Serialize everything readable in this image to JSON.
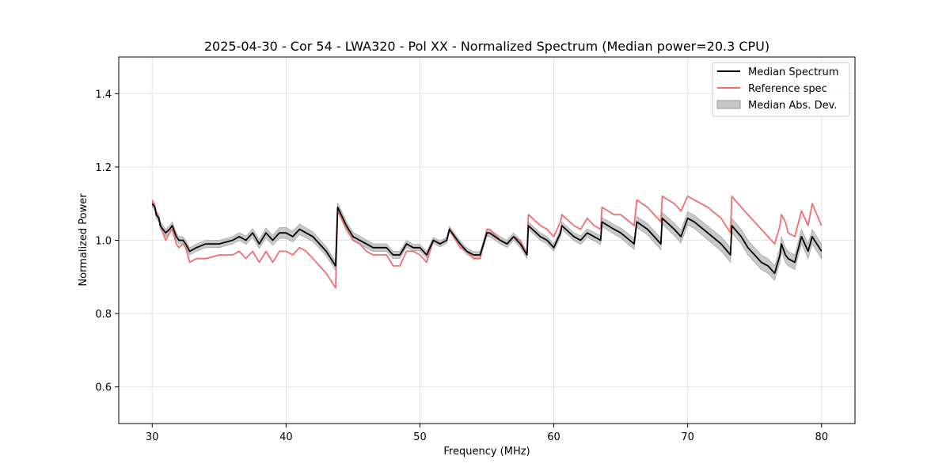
{
  "chart_data": {
    "type": "line",
    "title": "2025-04-30 - Cor 54 - LWA320 - Pol XX - Normalized Spectrum (Median power=20.3 CPU)",
    "xlabel": "Frequency (MHz)",
    "ylabel": "Normalized Power",
    "xlim": [
      27.5,
      82.5
    ],
    "ylim": [
      0.5,
      1.5
    ],
    "xticks": [
      30,
      40,
      50,
      60,
      70,
      80
    ],
    "yticks": [
      0.6,
      0.8,
      1.0,
      1.2,
      1.4
    ],
    "xtick_labels": [
      "30",
      "40",
      "50",
      "60",
      "70",
      "80"
    ],
    "ytick_labels": [
      "0.6",
      "0.8",
      "1.0",
      "1.2",
      "1.4"
    ],
    "grid": true,
    "legend": {
      "position": "top-right",
      "entries": [
        "Median Spectrum",
        "Reference spec",
        "Median Abs. Dev."
      ]
    },
    "colors": {
      "median": "#000000",
      "reference": "#f26d6d",
      "band": "#b0b0b0"
    },
    "series": [
      {
        "name": "Median Spectrum",
        "x": [
          30.0,
          30.2,
          30.3,
          30.5,
          30.6,
          30.8,
          31.0,
          31.3,
          31.5,
          31.8,
          32.0,
          32.3,
          32.5,
          32.8,
          33.3,
          34.0,
          35.0,
          36.0,
          36.5,
          37.0,
          37.5,
          38.0,
          38.5,
          39.0,
          39.5,
          40.0,
          40.5,
          41.0,
          41.5,
          42.0,
          42.5,
          43.0,
          43.7,
          43.85,
          44.5,
          45.0,
          45.5,
          46.0,
          46.5,
          47.0,
          47.5,
          48.0,
          48.5,
          49.0,
          49.5,
          50.0,
          50.5,
          51.0,
          51.5,
          52.0,
          52.2,
          53.0,
          53.5,
          54.0,
          54.5,
          55.0,
          55.2,
          56.0,
          56.5,
          57.0,
          57.5,
          58.0,
          58.1,
          59.0,
          59.5,
          60.0,
          60.5,
          60.6,
          61.5,
          62.0,
          62.5,
          63.0,
          63.5,
          63.6,
          64.5,
          65.0,
          66.0,
          66.2,
          67.0,
          67.5,
          68.0,
          68.1,
          69.0,
          69.5,
          70.0,
          70.5,
          71.5,
          72.5,
          73.2,
          73.3,
          74.0,
          74.5,
          75.0,
          75.5,
          76.0,
          76.5,
          76.9,
          77.0,
          77.3,
          77.5,
          78.0,
          78.5,
          79.0,
          79.3,
          80.0
        ],
        "values": [
          1.1,
          1.09,
          1.07,
          1.06,
          1.04,
          1.03,
          1.02,
          1.03,
          1.04,
          1.01,
          1.0,
          1.0,
          0.99,
          0.97,
          0.98,
          0.99,
          0.99,
          1.0,
          1.01,
          1.0,
          1.02,
          0.99,
          1.02,
          1.0,
          1.02,
          1.02,
          1.01,
          1.03,
          1.02,
          1.01,
          0.99,
          0.97,
          0.93,
          1.09,
          1.04,
          1.01,
          1.0,
          0.99,
          0.98,
          0.98,
          0.98,
          0.96,
          0.96,
          0.99,
          0.98,
          0.98,
          0.96,
          1.0,
          0.99,
          1.0,
          1.03,
          0.99,
          0.97,
          0.96,
          0.96,
          1.02,
          1.02,
          1.0,
          0.99,
          1.01,
          0.99,
          0.96,
          1.04,
          1.01,
          1.0,
          0.98,
          1.02,
          1.04,
          1.01,
          1.0,
          1.02,
          1.01,
          1.0,
          1.05,
          1.03,
          1.02,
          0.99,
          1.05,
          1.03,
          1.01,
          0.99,
          1.06,
          1.03,
          1.01,
          1.06,
          1.05,
          1.02,
          0.99,
          0.96,
          1.04,
          1.01,
          0.98,
          0.96,
          0.94,
          0.93,
          0.91,
          0.96,
          0.99,
          0.96,
          0.95,
          0.94,
          1.01,
          0.97,
          1.01,
          0.97
        ]
      },
      {
        "name": "Reference spec",
        "x": [
          30.0,
          30.2,
          30.3,
          30.5,
          30.6,
          30.8,
          31.0,
          31.3,
          31.5,
          31.8,
          32.0,
          32.3,
          32.5,
          32.8,
          33.3,
          34.0,
          35.0,
          36.0,
          36.5,
          37.0,
          37.5,
          38.0,
          38.5,
          39.0,
          39.5,
          40.0,
          40.5,
          41.0,
          41.5,
          42.0,
          42.5,
          43.0,
          43.7,
          43.85,
          44.5,
          45.0,
          45.5,
          46.0,
          46.5,
          47.0,
          47.5,
          48.0,
          48.5,
          49.0,
          49.5,
          50.0,
          50.5,
          51.0,
          51.5,
          52.0,
          52.2,
          53.0,
          53.5,
          54.0,
          54.5,
          55.0,
          55.2,
          56.0,
          56.5,
          57.0,
          57.5,
          58.0,
          58.1,
          59.0,
          59.5,
          60.0,
          60.5,
          60.6,
          61.5,
          62.0,
          62.5,
          63.0,
          63.5,
          63.6,
          64.5,
          65.0,
          66.0,
          66.2,
          67.0,
          67.5,
          68.0,
          68.1,
          69.0,
          69.5,
          70.0,
          70.5,
          71.5,
          72.5,
          73.2,
          73.3,
          74.0,
          74.5,
          75.0,
          75.5,
          76.0,
          76.5,
          76.9,
          77.0,
          77.3,
          77.5,
          78.0,
          78.5,
          79.0,
          79.3,
          80.0
        ],
        "values": [
          1.11,
          1.09,
          1.08,
          1.06,
          1.05,
          1.02,
          1.0,
          1.02,
          1.03,
          0.99,
          0.98,
          0.99,
          0.98,
          0.94,
          0.95,
          0.95,
          0.96,
          0.96,
          0.97,
          0.95,
          0.97,
          0.94,
          0.97,
          0.94,
          0.97,
          0.97,
          0.96,
          0.98,
          0.97,
          0.95,
          0.93,
          0.91,
          0.87,
          1.08,
          1.03,
          1.0,
          0.99,
          0.97,
          0.96,
          0.96,
          0.96,
          0.93,
          0.93,
          0.97,
          0.97,
          0.96,
          0.94,
          1.0,
          0.99,
          1.0,
          1.03,
          0.98,
          0.97,
          0.95,
          0.95,
          1.03,
          1.03,
          1.0,
          0.99,
          1.01,
          1.0,
          0.96,
          1.07,
          1.04,
          1.03,
          1.01,
          1.05,
          1.07,
          1.04,
          1.03,
          1.06,
          1.04,
          1.03,
          1.09,
          1.07,
          1.07,
          1.04,
          1.11,
          1.09,
          1.07,
          1.05,
          1.12,
          1.1,
          1.08,
          1.12,
          1.11,
          1.09,
          1.06,
          1.02,
          1.12,
          1.09,
          1.07,
          1.05,
          1.03,
          1.01,
          0.99,
          1.04,
          1.07,
          1.05,
          1.02,
          1.01,
          1.08,
          1.04,
          1.1,
          1.04
        ]
      },
      {
        "name": "Median Abs. Dev.",
        "x": [
          30.0,
          32.0,
          36.0,
          40.0,
          43.7,
          44.0,
          48.0,
          52.0,
          56.0,
          58.0,
          60.0,
          63.5,
          66.0,
          68.0,
          70.0,
          73.3,
          75.0,
          76.5,
          77.0,
          78.5,
          79.0,
          80.0
        ],
        "values": [
          0.01,
          0.01,
          0.01,
          0.015,
          0.012,
          0.012,
          0.01,
          0.008,
          0.01,
          0.01,
          0.01,
          0.012,
          0.015,
          0.016,
          0.018,
          0.02,
          0.02,
          0.02,
          0.02,
          0.02,
          0.02,
          0.02
        ]
      }
    ]
  }
}
